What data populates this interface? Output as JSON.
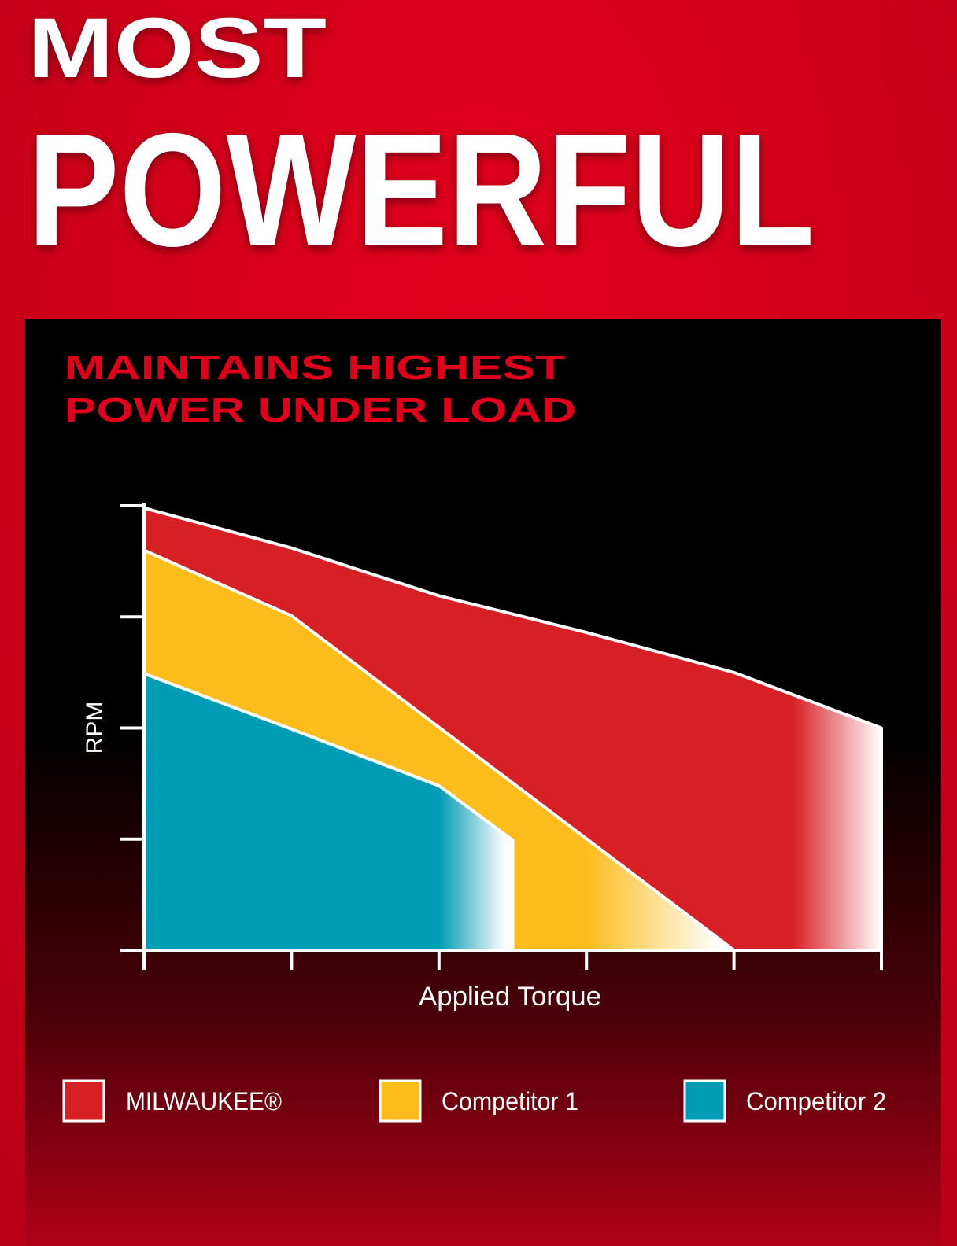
{
  "header": {
    "line1": "MOST",
    "line2": "POWERFUL"
  },
  "chart_data": {
    "type": "area",
    "title": "MAINTAINS HIGHEST POWER UNDER LOAD",
    "title_lines": [
      "MAINTAINS HIGHEST",
      "POWER UNDER LOAD"
    ],
    "xlabel": "Applied Torque",
    "ylabel": "RPM",
    "xlim": [
      0,
      5
    ],
    "ylim": [
      0,
      4
    ],
    "x_ticks": [
      0,
      1,
      2,
      3,
      4,
      5
    ],
    "y_ticks": [
      0,
      1,
      2,
      3,
      4
    ],
    "tick_labels_shown": false,
    "grid": false,
    "legend_position": "bottom",
    "series": [
      {
        "name": "MILWAUKEE®",
        "color": "#d71f26",
        "points": [
          [
            0,
            3.98
          ],
          [
            1,
            3.62
          ],
          [
            2,
            3.19
          ],
          [
            3,
            2.86
          ],
          [
            4,
            2.5
          ],
          [
            5,
            2.0
          ],
          [
            5,
            0
          ]
        ]
      },
      {
        "name": "Competitor 1",
        "color": "#fcbc1c",
        "points": [
          [
            0,
            3.6
          ],
          [
            1,
            3.01
          ],
          [
            4,
            0
          ]
        ]
      },
      {
        "name": "Competitor 2",
        "color": "#009bb4",
        "points": [
          [
            0,
            2.49
          ],
          [
            1,
            1.99
          ],
          [
            2,
            1.48
          ],
          [
            2.5,
            0.99
          ],
          [
            2.5,
            0
          ]
        ]
      }
    ]
  },
  "colors": {
    "background": "#d3001a",
    "panel": "#000000",
    "title": "#e0001b",
    "axis": "#ffffff"
  }
}
